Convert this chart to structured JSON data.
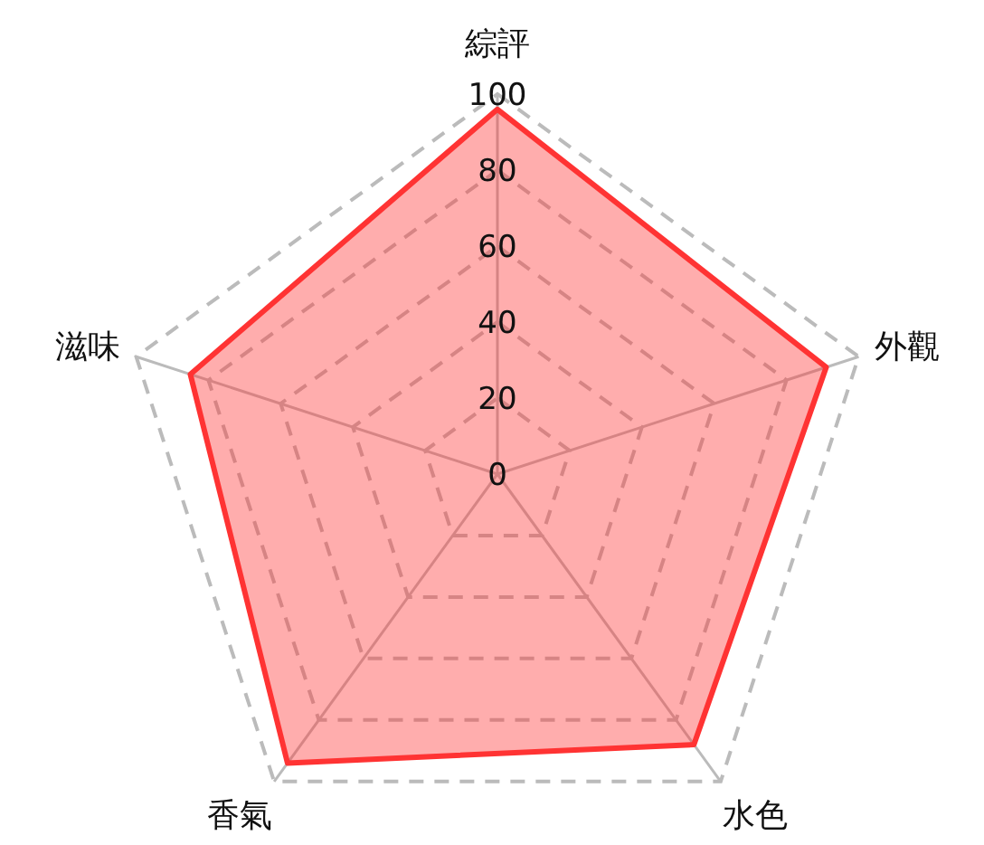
{
  "chart_data": {
    "type": "radar",
    "categories": [
      "綜評",
      "外觀",
      "水色",
      "香氣",
      "滋味"
    ],
    "ylim": [
      0,
      100
    ],
    "yticks": [
      0,
      20,
      40,
      60,
      80,
      100
    ],
    "grid": true,
    "series": [
      {
        "color": "#ff3333",
        "values": [
          96,
          91,
          88,
          94,
          85
        ]
      }
    ]
  }
}
